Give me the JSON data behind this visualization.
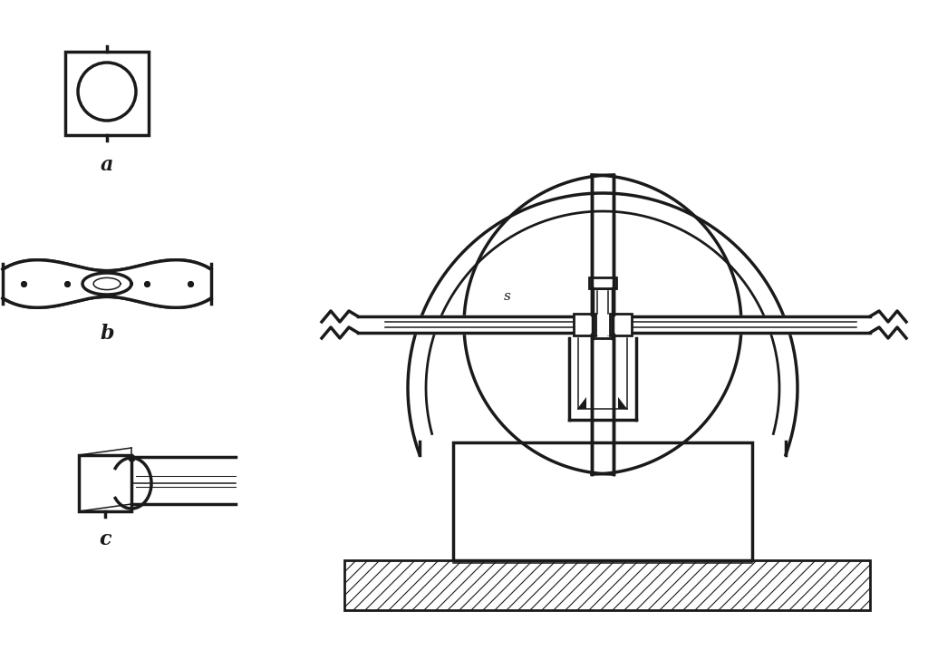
{
  "bg_color": "#ffffff",
  "line_color": "#1a1a1a",
  "lw": 2.0,
  "lw_thin": 1.1,
  "lw_thick": 2.5,
  "label_a": "a",
  "label_b": "b",
  "label_c": "c",
  "label_s": "s"
}
